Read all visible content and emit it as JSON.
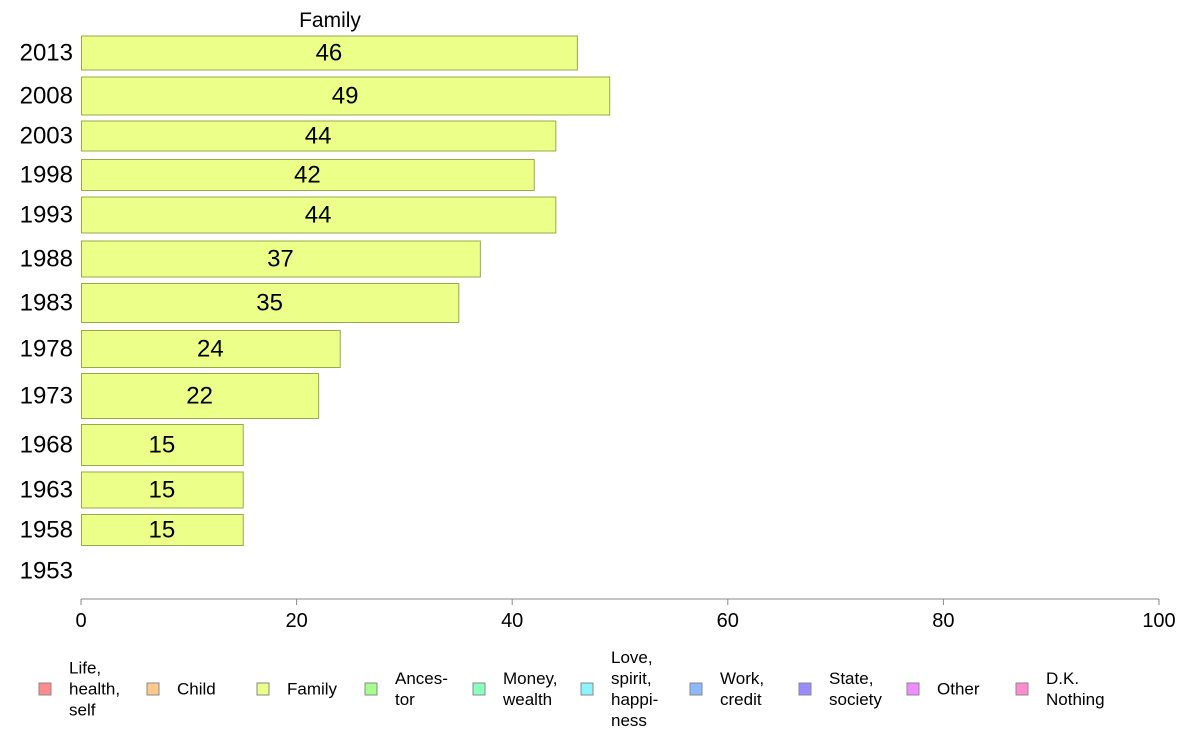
{
  "chart_data": {
    "type": "bar",
    "orientation": "horizontal",
    "title": "Family",
    "categories": [
      "2013",
      "2008",
      "2003",
      "1998",
      "1993",
      "1988",
      "1983",
      "1978",
      "1973",
      "1968",
      "1963",
      "1958",
      "1953"
    ],
    "values": [
      46,
      49,
      44,
      42,
      44,
      37,
      35,
      24,
      22,
      15,
      15,
      15,
      null
    ],
    "bar_labels": [
      "46",
      "49",
      "44",
      "42",
      "44",
      "37",
      "35",
      "24",
      "22",
      "15",
      "15",
      "15",
      ""
    ],
    "xlim": [
      0,
      100
    ],
    "xticks": [
      0,
      20,
      40,
      60,
      80,
      100
    ],
    "grid": false,
    "bar_color": "#ecff88",
    "legend": {
      "placement": "bottom",
      "items": [
        {
          "lines": [
            "Life,",
            "health,",
            "self"
          ],
          "color": "#ff8c8c"
        },
        {
          "lines": [
            "Child"
          ],
          "color": "#ffc98c"
        },
        {
          "lines": [
            "Family"
          ],
          "color": "#ecff88"
        },
        {
          "lines": [
            "Ances-",
            "tor"
          ],
          "color": "#a6ff8c"
        },
        {
          "lines": [
            "Money,",
            "wealth"
          ],
          "color": "#8cffc0"
        },
        {
          "lines": [
            "Love,",
            "spirit,",
            "happi-",
            "ness"
          ],
          "color": "#8cf4ff"
        },
        {
          "lines": [
            "Work,",
            "credit"
          ],
          "color": "#8cb8ff"
        },
        {
          "lines": [
            "State,",
            "society"
          ],
          "color": "#9a8cff"
        },
        {
          "lines": [
            "Other"
          ],
          "color": "#f08cff"
        },
        {
          "lines": [
            "D.K.",
            "Nothing"
          ],
          "color": "#ff8cd0"
        }
      ]
    }
  }
}
